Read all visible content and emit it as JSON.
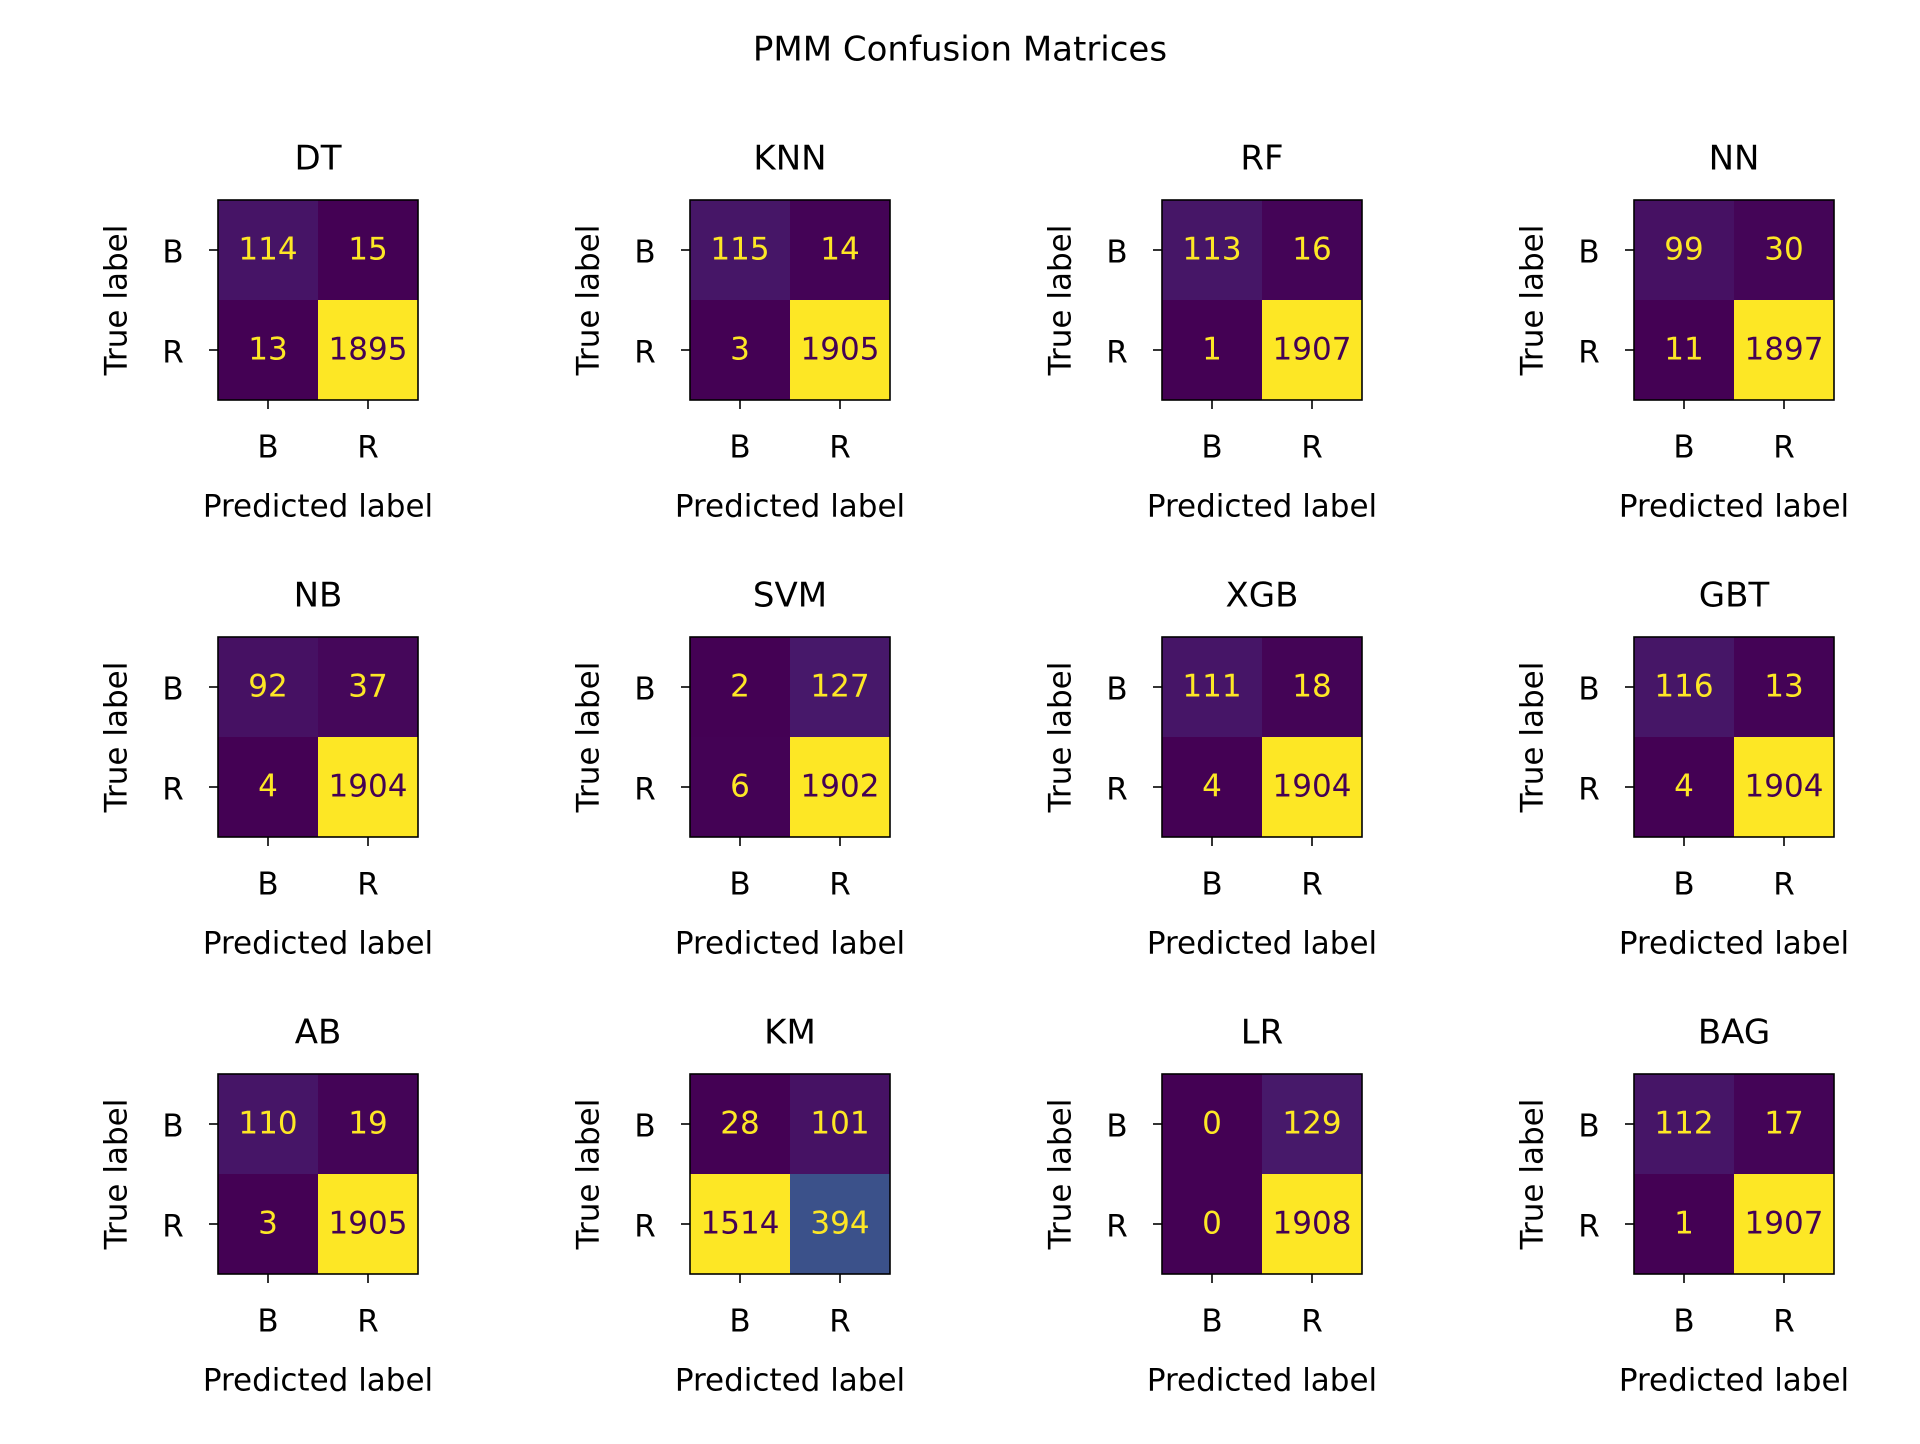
{
  "figure": {
    "title": "PMM Confusion Matrices"
  },
  "chart_data": [
    {
      "type": "heatmap",
      "title": "DT",
      "xlabel": "Predicted label",
      "ylabel": "True label",
      "x_ticks": [
        "B",
        "R"
      ],
      "y_ticks": [
        "B",
        "R"
      ],
      "values": [
        [
          114,
          15
        ],
        [
          13,
          1895
        ]
      ]
    },
    {
      "type": "heatmap",
      "title": "KNN",
      "xlabel": "Predicted label",
      "ylabel": "True label",
      "x_ticks": [
        "B",
        "R"
      ],
      "y_ticks": [
        "B",
        "R"
      ],
      "values": [
        [
          115,
          14
        ],
        [
          3,
          1905
        ]
      ]
    },
    {
      "type": "heatmap",
      "title": "RF",
      "xlabel": "Predicted label",
      "ylabel": "True label",
      "x_ticks": [
        "B",
        "R"
      ],
      "y_ticks": [
        "B",
        "R"
      ],
      "values": [
        [
          113,
          16
        ],
        [
          1,
          1907
        ]
      ]
    },
    {
      "type": "heatmap",
      "title": "NN",
      "xlabel": "Predicted label",
      "ylabel": "True label",
      "x_ticks": [
        "B",
        "R"
      ],
      "y_ticks": [
        "B",
        "R"
      ],
      "values": [
        [
          99,
          30
        ],
        [
          11,
          1897
        ]
      ]
    },
    {
      "type": "heatmap",
      "title": "NB",
      "xlabel": "Predicted label",
      "ylabel": "True label",
      "x_ticks": [
        "B",
        "R"
      ],
      "y_ticks": [
        "B",
        "R"
      ],
      "values": [
        [
          92,
          37
        ],
        [
          4,
          1904
        ]
      ]
    },
    {
      "type": "heatmap",
      "title": "SVM",
      "xlabel": "Predicted label",
      "ylabel": "True label",
      "x_ticks": [
        "B",
        "R"
      ],
      "y_ticks": [
        "B",
        "R"
      ],
      "values": [
        [
          2,
          127
        ],
        [
          6,
          1902
        ]
      ]
    },
    {
      "type": "heatmap",
      "title": "XGB",
      "xlabel": "Predicted label",
      "ylabel": "True label",
      "x_ticks": [
        "B",
        "R"
      ],
      "y_ticks": [
        "B",
        "R"
      ],
      "values": [
        [
          111,
          18
        ],
        [
          4,
          1904
        ]
      ]
    },
    {
      "type": "heatmap",
      "title": "GBT",
      "xlabel": "Predicted label",
      "ylabel": "True label",
      "x_ticks": [
        "B",
        "R"
      ],
      "y_ticks": [
        "B",
        "R"
      ],
      "values": [
        [
          116,
          13
        ],
        [
          4,
          1904
        ]
      ]
    },
    {
      "type": "heatmap",
      "title": "AB",
      "xlabel": "Predicted label",
      "ylabel": "True label",
      "x_ticks": [
        "B",
        "R"
      ],
      "y_ticks": [
        "B",
        "R"
      ],
      "values": [
        [
          110,
          19
        ],
        [
          3,
          1905
        ]
      ]
    },
    {
      "type": "heatmap",
      "title": "KM",
      "xlabel": "Predicted label",
      "ylabel": "True label",
      "x_ticks": [
        "B",
        "R"
      ],
      "y_ticks": [
        "B",
        "R"
      ],
      "values": [
        [
          28,
          101
        ],
        [
          1514,
          394
        ]
      ]
    },
    {
      "type": "heatmap",
      "title": "LR",
      "xlabel": "Predicted label",
      "ylabel": "True label",
      "x_ticks": [
        "B",
        "R"
      ],
      "y_ticks": [
        "B",
        "R"
      ],
      "values": [
        [
          0,
          129
        ],
        [
          0,
          1908
        ]
      ]
    },
    {
      "type": "heatmap",
      "title": "BAG",
      "xlabel": "Predicted label",
      "ylabel": "True label",
      "x_ticks": [
        "B",
        "R"
      ],
      "y_ticks": [
        "B",
        "R"
      ],
      "values": [
        [
          112,
          17
        ],
        [
          1,
          1907
        ]
      ]
    }
  ],
  "colormap": "viridis",
  "text_colors": {
    "on_dark": "#fde725",
    "on_light": "#440154"
  }
}
